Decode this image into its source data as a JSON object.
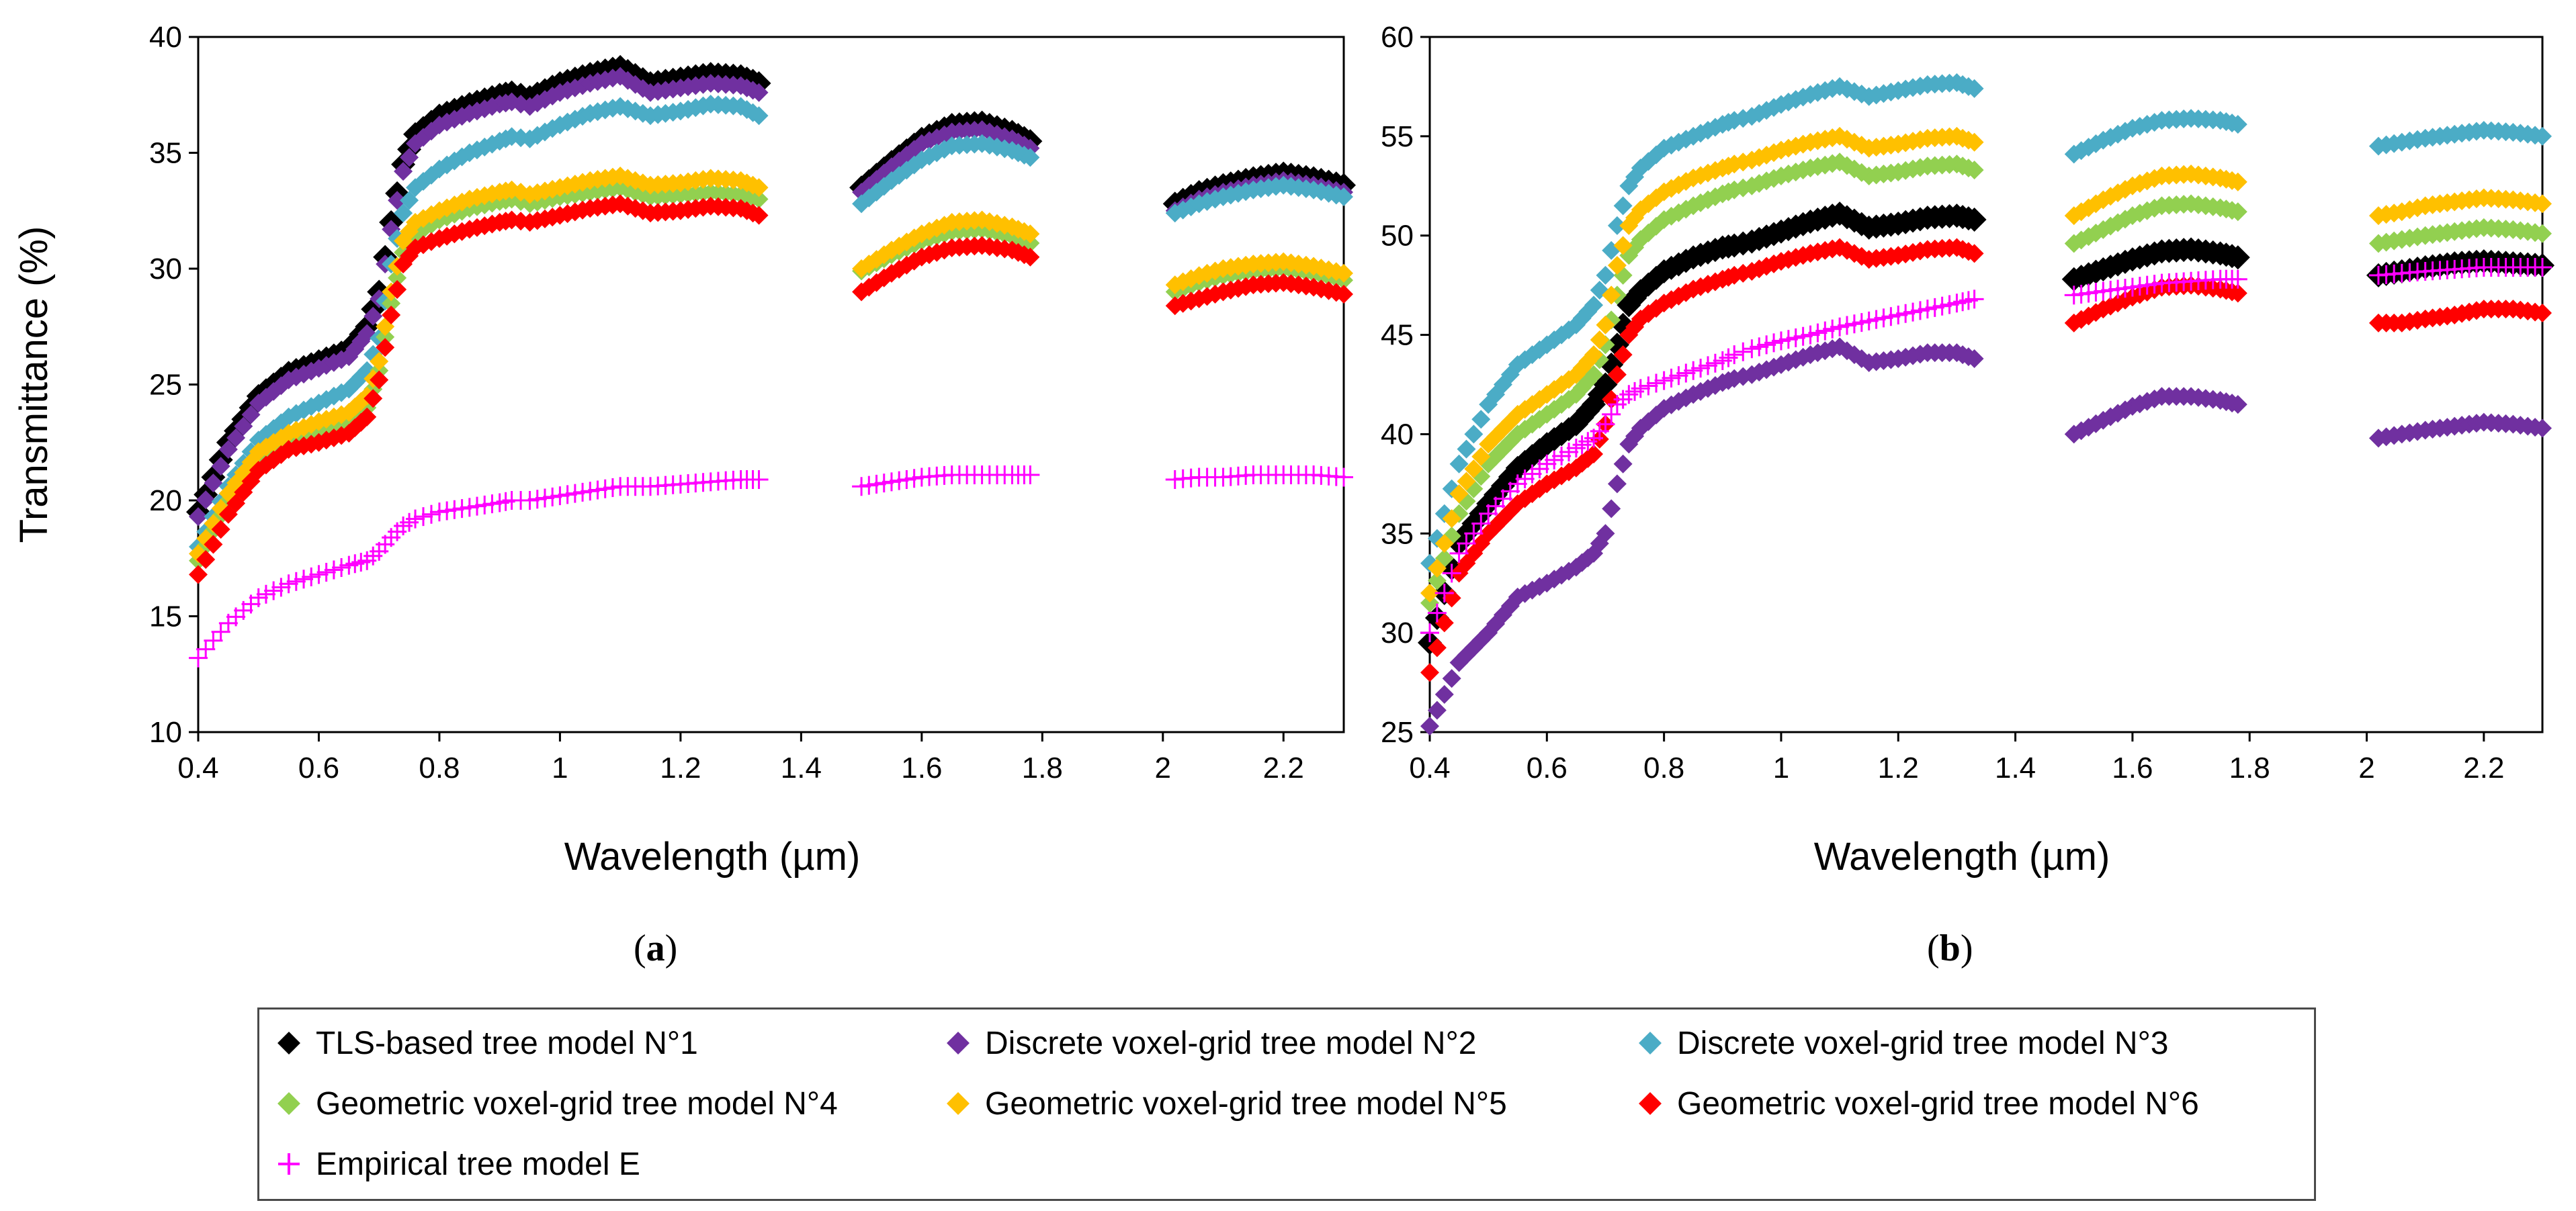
{
  "legend": [
    {
      "key": "s1",
      "label": "TLS-based tree model N°1",
      "color": "#000000",
      "marker": "diamond"
    },
    {
      "key": "s2",
      "label": "Discrete voxel-grid tree model N°2",
      "color": "#7030A0",
      "marker": "diamond"
    },
    {
      "key": "s3",
      "label": "Discrete voxel-grid tree model N°3",
      "color": "#4BACC6",
      "marker": "diamond"
    },
    {
      "key": "s4",
      "label": "Geometric voxel-grid tree model N°4",
      "color": "#92D050",
      "marker": "diamond"
    },
    {
      "key": "s5",
      "label": "Geometric voxel-grid tree model N°5",
      "color": "#FFC000",
      "marker": "diamond"
    },
    {
      "key": "s6",
      "label": "Geometric voxel-grid tree model N°6",
      "color": "#FF0000",
      "marker": "diamond"
    },
    {
      "key": "sE",
      "label": "Empirical tree model E",
      "color": "#FF00FF",
      "marker": "plus"
    }
  ],
  "panel_labels": {
    "a": "a",
    "b": "b"
  },
  "chart_data": [
    {
      "id": "a",
      "type": "scatter",
      "xlabel": "Wavelength (µm)",
      "ylabel": "Transmittance (%)",
      "xlim": [
        0.4,
        2.3
      ],
      "ylim": [
        10,
        40
      ],
      "xticks": [
        "0.4",
        "0.6",
        "0.8",
        "1",
        "1.2",
        "1.4",
        "1.6",
        "1.8",
        "2",
        "2.2"
      ],
      "yticks": [
        "10",
        "15",
        "20",
        "25",
        "30",
        "35",
        "40"
      ],
      "x": [
        0.4,
        0.45,
        0.5,
        0.55,
        0.6,
        0.65,
        0.68,
        0.7,
        0.72,
        0.74,
        0.76,
        0.8,
        0.85,
        0.9,
        0.92,
        0.95,
        1.0,
        1.05,
        1.1,
        1.15,
        1.2,
        1.25,
        1.3,
        1.33,
        1.5,
        1.55,
        1.6,
        1.65,
        1.7,
        1.75,
        1.78,
        2.02,
        2.06,
        2.1,
        2.15,
        2.2,
        2.25,
        2.3
      ],
      "series": [
        {
          "name": "TLS-based tree model N°1",
          "values": [
            19.5,
            22.5,
            24.5,
            25.5,
            26.0,
            26.5,
            27.5,
            29.0,
            32.0,
            34.5,
            35.8,
            36.6,
            37.1,
            37.5,
            37.6,
            37.4,
            38.0,
            38.4,
            38.7,
            38.0,
            38.2,
            38.4,
            38.3,
            38.0,
            33.5,
            34.6,
            35.6,
            36.2,
            36.3,
            35.9,
            35.5,
            32.8,
            33.3,
            33.6,
            33.9,
            34.1,
            33.9,
            33.6
          ]
        },
        {
          "name": "Discrete voxel-grid tree model N°2",
          "values": [
            19.3,
            22.2,
            24.2,
            25.2,
            25.7,
            26.2,
            27.2,
            28.7,
            31.7,
            34.2,
            35.4,
            36.2,
            36.7,
            37.1,
            37.2,
            37.0,
            37.6,
            38.0,
            38.3,
            37.6,
            37.8,
            38.0,
            37.9,
            37.6,
            33.3,
            34.4,
            35.4,
            35.9,
            36.0,
            35.6,
            35.2,
            32.5,
            33.0,
            33.3,
            33.6,
            33.8,
            33.6,
            33.3
          ]
        },
        {
          "name": "Discrete voxel-grid tree model N°3",
          "values": [
            18.0,
            20.6,
            22.6,
            23.6,
            24.2,
            24.8,
            25.6,
            27.0,
            30.2,
            32.4,
            33.5,
            34.3,
            35.0,
            35.5,
            35.7,
            35.6,
            36.2,
            36.7,
            37.0,
            36.6,
            36.8,
            37.1,
            37.0,
            36.6,
            32.8,
            33.8,
            34.7,
            35.3,
            35.4,
            35.1,
            34.8,
            32.4,
            32.8,
            33.1,
            33.4,
            33.6,
            33.4,
            33.1
          ]
        },
        {
          "name": "Geometric voxel-grid tree model N°4",
          "values": [
            17.4,
            20.0,
            21.8,
            22.6,
            23.0,
            23.4,
            24.0,
            25.6,
            28.5,
            30.7,
            31.5,
            32.1,
            32.6,
            32.9,
            33.0,
            32.8,
            33.1,
            33.3,
            33.5,
            33.1,
            33.2,
            33.3,
            33.2,
            33.0,
            29.9,
            30.6,
            31.2,
            31.6,
            31.7,
            31.4,
            31.1,
            29.0,
            29.4,
            29.7,
            29.9,
            30.0,
            29.8,
            29.5
          ]
        },
        {
          "name": "Geometric voxel-grid tree model N°5",
          "values": [
            17.7,
            20.3,
            22.1,
            22.9,
            23.4,
            23.8,
            24.5,
            26.0,
            29.0,
            31.2,
            32.0,
            32.5,
            33.0,
            33.3,
            33.4,
            33.2,
            33.5,
            33.8,
            34.0,
            33.6,
            33.7,
            33.9,
            33.8,
            33.5,
            30.0,
            30.8,
            31.5,
            32.0,
            32.1,
            31.8,
            31.5,
            29.3,
            29.7,
            30.0,
            30.2,
            30.3,
            30.1,
            29.8
          ]
        },
        {
          "name": "Geometric voxel-grid tree model N°6",
          "values": [
            16.8,
            19.4,
            21.3,
            22.2,
            22.5,
            22.9,
            23.6,
            25.2,
            28.0,
            30.2,
            30.9,
            31.3,
            31.7,
            32.0,
            32.1,
            32.0,
            32.3,
            32.6,
            32.8,
            32.4,
            32.5,
            32.7,
            32.6,
            32.3,
            29.0,
            29.8,
            30.5,
            30.9,
            31.0,
            30.8,
            30.5,
            28.4,
            28.7,
            29.0,
            29.3,
            29.4,
            29.2,
            28.9
          ]
        },
        {
          "name": "Empirical tree model E",
          "values": [
            13.2,
            14.7,
            15.8,
            16.4,
            16.8,
            17.2,
            17.4,
            17.8,
            18.4,
            18.9,
            19.2,
            19.5,
            19.7,
            19.9,
            20.0,
            20.0,
            20.2,
            20.4,
            20.6,
            20.6,
            20.7,
            20.8,
            20.9,
            20.9,
            20.6,
            20.8,
            21.0,
            21.1,
            21.1,
            21.1,
            21.1,
            20.9,
            21.0,
            21.0,
            21.1,
            21.1,
            21.1,
            21.0
          ]
        }
      ]
    },
    {
      "id": "b",
      "type": "scatter",
      "xlabel": "Wavelength (µm)",
      "ylabel": "",
      "xlim": [
        0.4,
        2.3
      ],
      "ylim": [
        25,
        60
      ],
      "xticks": [
        "0.4",
        "0.6",
        "0.8",
        "1",
        "1.2",
        "1.4",
        "1.6",
        "1.8",
        "2",
        "2.2"
      ],
      "yticks": [
        "25",
        "30",
        "35",
        "40",
        "45",
        "50",
        "55",
        "60"
      ],
      "x": [
        0.4,
        0.45,
        0.5,
        0.55,
        0.6,
        0.65,
        0.68,
        0.7,
        0.72,
        0.74,
        0.76,
        0.8,
        0.85,
        0.9,
        0.92,
        0.95,
        1.0,
        1.05,
        1.1,
        1.15,
        1.2,
        1.25,
        1.3,
        1.33,
        1.5,
        1.55,
        1.6,
        1.65,
        1.7,
        1.75,
        1.78,
        2.02,
        2.06,
        2.1,
        2.15,
        2.2,
        2.25,
        2.3
      ],
      "series": [
        {
          "name": "TLS-based tree model N°1",
          "values": [
            29.5,
            34.5,
            36.5,
            38.3,
            39.5,
            40.5,
            41.5,
            42.5,
            44.5,
            46.5,
            47.2,
            48.2,
            48.9,
            49.4,
            49.5,
            49.7,
            50.2,
            50.7,
            51.1,
            50.4,
            50.6,
            50.9,
            51.0,
            50.8,
            47.8,
            48.3,
            48.8,
            49.2,
            49.3,
            49.1,
            48.9,
            48.0,
            48.2,
            48.4,
            48.6,
            48.7,
            48.6,
            48.5
          ]
        },
        {
          "name": "Discrete voxel-grid tree model N°2",
          "values": [
            25.3,
            28.5,
            30.0,
            31.8,
            32.5,
            33.3,
            34.0,
            35.0,
            37.5,
            39.5,
            40.3,
            41.3,
            42.0,
            42.6,
            42.8,
            43.0,
            43.5,
            44.0,
            44.4,
            43.6,
            43.8,
            44.1,
            44.1,
            43.8,
            40.0,
            40.7,
            41.4,
            41.9,
            41.9,
            41.7,
            41.5,
            39.8,
            40.0,
            40.2,
            40.4,
            40.6,
            40.5,
            40.3
          ]
        },
        {
          "name": "Discrete voxel-grid tree model N°3",
          "values": [
            33.5,
            38.5,
            41.5,
            43.5,
            44.5,
            45.5,
            46.5,
            48.0,
            50.5,
            52.5,
            53.4,
            54.4,
            55.0,
            55.6,
            55.8,
            56.0,
            56.6,
            57.1,
            57.5,
            57.0,
            57.3,
            57.6,
            57.7,
            57.4,
            54.1,
            54.8,
            55.4,
            55.8,
            55.9,
            55.8,
            55.6,
            54.5,
            54.7,
            54.9,
            55.1,
            55.3,
            55.2,
            55.0
          ]
        },
        {
          "name": "Geometric voxel-grid tree model N°4",
          "values": [
            31.5,
            36.0,
            38.5,
            40.0,
            41.0,
            42.0,
            43.0,
            44.5,
            47.0,
            49.0,
            49.8,
            50.8,
            51.5,
            52.1,
            52.3,
            52.5,
            53.0,
            53.4,
            53.7,
            53.0,
            53.2,
            53.5,
            53.6,
            53.3,
            49.6,
            50.3,
            51.0,
            51.5,
            51.6,
            51.4,
            51.2,
            49.6,
            49.8,
            50.0,
            50.2,
            50.4,
            50.3,
            50.1
          ]
        },
        {
          "name": "Geometric voxel-grid tree model N°5",
          "values": [
            32.0,
            37.0,
            39.5,
            41.0,
            42.0,
            43.0,
            44.0,
            45.5,
            48.5,
            50.5,
            51.3,
            52.2,
            52.9,
            53.4,
            53.6,
            53.8,
            54.3,
            54.7,
            55.0,
            54.4,
            54.6,
            54.9,
            55.0,
            54.7,
            51.0,
            51.8,
            52.5,
            53.0,
            53.1,
            52.9,
            52.7,
            51.0,
            51.2,
            51.5,
            51.7,
            51.9,
            51.8,
            51.6
          ]
        },
        {
          "name": "Geometric voxel-grid tree model N°6",
          "values": [
            28.0,
            33.0,
            35.0,
            36.5,
            37.5,
            38.3,
            39.0,
            40.5,
            43.0,
            45.0,
            45.8,
            46.6,
            47.3,
            47.8,
            48.0,
            48.2,
            48.7,
            49.1,
            49.4,
            48.8,
            49.0,
            49.3,
            49.4,
            49.1,
            45.6,
            46.3,
            46.9,
            47.4,
            47.5,
            47.3,
            47.1,
            45.6,
            45.6,
            45.8,
            46.0,
            46.3,
            46.3,
            46.1
          ]
        },
        {
          "name": "Empirical tree model E",
          "values": [
            30.0,
            34.0,
            36.0,
            37.5,
            38.5,
            39.3,
            39.8,
            40.5,
            41.5,
            42.0,
            42.3,
            42.7,
            43.2,
            43.7,
            44.0,
            44.3,
            44.7,
            45.0,
            45.4,
            45.7,
            46.0,
            46.3,
            46.6,
            46.8,
            47.0,
            47.2,
            47.4,
            47.6,
            47.7,
            47.8,
            47.8,
            48.0,
            48.1,
            48.2,
            48.3,
            48.4,
            48.4,
            48.4
          ]
        }
      ]
    }
  ]
}
